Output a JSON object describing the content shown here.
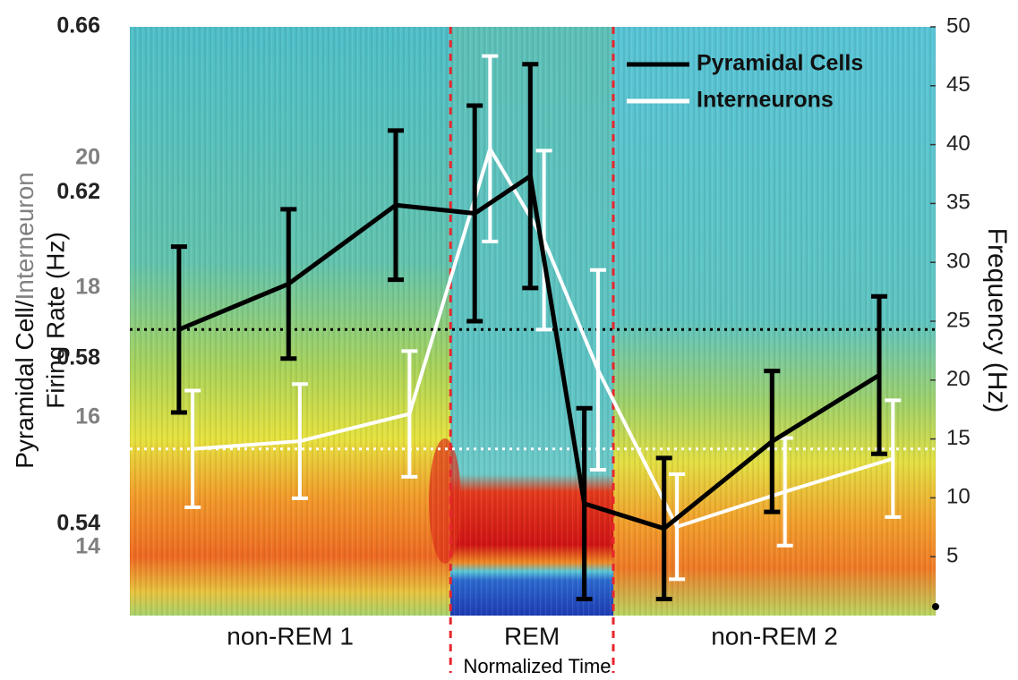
{
  "chart_data": {
    "type": "line",
    "ylabel": [
      "Pyramidal Cell/",
      "Interneuron",
      "Firing Rate (Hz)"
    ],
    "y2label": "Frequency (Hz)",
    "xlabel": "Normalized Time",
    "xlim": [
      0,
      1
    ],
    "ylim": [
      0.518,
      0.66
    ],
    "yticks": [
      0.54,
      0.58,
      0.62,
      0.66
    ],
    "y3lim": [
      12.95,
      22.03
    ],
    "y3ticks": [
      14,
      16,
      18,
      20
    ],
    "y2lim": [
      0,
      50
    ],
    "y2ticks": [
      5,
      10,
      15,
      20,
      25,
      30,
      35,
      40,
      45,
      50
    ],
    "periods": [
      {
        "label": "non-REM 1",
        "start": 0,
        "end": 0.398
      },
      {
        "label": "REM",
        "start": 0.398,
        "end": 0.6
      },
      {
        "label": "non-REM 2",
        "start": 0.6,
        "end": 1
      }
    ],
    "legend": "upper right",
    "series": [
      {
        "name": "Pyramidal Cells",
        "color": "#000000",
        "axis": "y",
        "x": [
          0.061,
          0.197,
          0.33,
          0.428,
          0.497,
          0.564,
          0.663,
          0.797,
          0.93
        ],
        "values": [
          0.587,
          0.598,
          0.617,
          0.615,
          0.624,
          0.545,
          0.539,
          0.56,
          0.576
        ],
        "errors": [
          0.02,
          0.018,
          0.018,
          0.026,
          0.027,
          0.023,
          0.017,
          0.017,
          0.019
        ],
        "baseline": 0.587
      },
      {
        "name": "Interneurons",
        "color": "#ffffff",
        "axis": "y3",
        "x": [
          0.078,
          0.211,
          0.347,
          0.447,
          0.514,
          0.581,
          0.679,
          0.813,
          0.947
        ],
        "values": [
          15.52,
          15.64,
          16.06,
          20.15,
          18.74,
          16.74,
          14.32,
          14.86,
          15.37
        ],
        "errors": [
          0.9,
          0.88,
          0.97,
          1.43,
          1.38,
          1.54,
          0.81,
          0.83,
          0.9
        ],
        "baseline": 15.52
      }
    ]
  }
}
